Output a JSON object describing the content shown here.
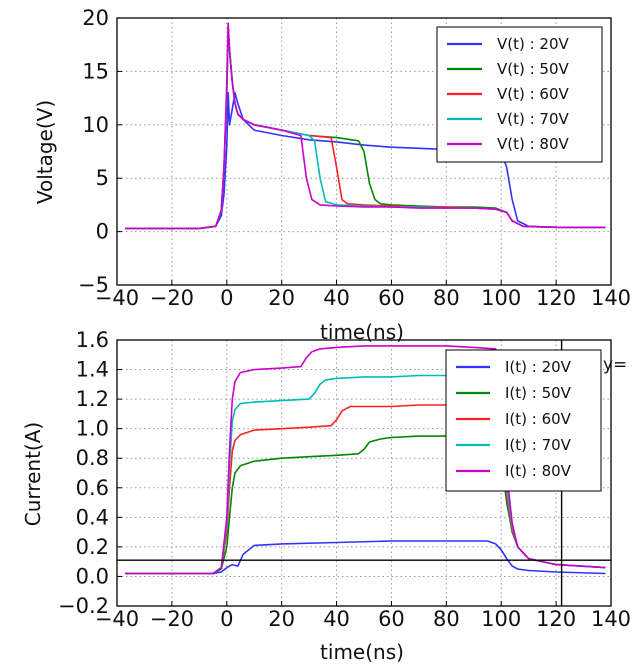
{
  "chart_data": [
    {
      "type": "line",
      "xlabel": "time(ns)",
      "ylabel": "Voltage(V)",
      "xlim": [
        -40,
        140
      ],
      "ylim": [
        -5,
        20
      ],
      "xticks": [
        -40,
        -20,
        0,
        20,
        40,
        60,
        80,
        100,
        120,
        140
      ],
      "yticks": [
        -5,
        0,
        5,
        10,
        15,
        20
      ],
      "grid": true,
      "legend_position": "top-right",
      "series": [
        {
          "name": "V(t) : 20V",
          "color": "#3333ff",
          "x": [
            -37,
            -10,
            -4,
            -2,
            -1,
            0,
            0.5,
            1,
            2,
            3,
            4,
            6,
            10,
            20,
            30,
            40,
            50,
            60,
            70,
            80,
            90,
            100,
            102,
            104,
            106,
            110,
            120,
            138
          ],
          "y": [
            0.3,
            0.3,
            0.5,
            1.5,
            3.5,
            8,
            13,
            10,
            11.5,
            13,
            12,
            10.5,
            9.5,
            9,
            8.6,
            8.4,
            8.1,
            7.9,
            7.8,
            7.7,
            7.6,
            7.5,
            6,
            3,
            1,
            0.5,
            0.4,
            0.4
          ]
        },
        {
          "name": "V(t) : 50V",
          "color": "#008800",
          "x": [
            -37,
            -10,
            -4,
            -2,
            -1,
            0,
            0.5,
            1,
            2,
            3,
            4,
            6,
            10,
            20,
            30,
            40,
            48,
            50,
            52,
            54,
            56,
            60,
            70,
            80,
            90,
            98,
            102,
            104,
            108,
            120,
            138
          ],
          "y": [
            0.3,
            0.3,
            0.5,
            2,
            6,
            13,
            19,
            17,
            14,
            12,
            11,
            10.5,
            10,
            9.5,
            9,
            8.8,
            8.5,
            7.5,
            4.5,
            3,
            2.6,
            2.5,
            2.4,
            2.3,
            2.3,
            2.2,
            1.8,
            1,
            0.5,
            0.4,
            0.4
          ]
        },
        {
          "name": "V(t) : 60V",
          "color": "#ff2222",
          "x": [
            -37,
            -10,
            -4,
            -2,
            -1,
            0,
            0.5,
            1,
            2,
            3,
            4,
            6,
            10,
            20,
            30,
            38,
            40,
            42,
            44,
            50,
            60,
            70,
            80,
            90,
            98,
            102,
            104,
            108,
            120,
            138
          ],
          "y": [
            0.3,
            0.3,
            0.5,
            2,
            6,
            13,
            19,
            17,
            14,
            12,
            11,
            10.5,
            10,
            9.5,
            9,
            8.8,
            6,
            3,
            2.6,
            2.5,
            2.4,
            2.3,
            2.3,
            2.2,
            2.1,
            1.8,
            1,
            0.5,
            0.4,
            0.4
          ]
        },
        {
          "name": "V(t) : 70V",
          "color": "#00bbbb",
          "x": [
            -37,
            -10,
            -4,
            -2,
            -1,
            0,
            0.5,
            1,
            2,
            3,
            4,
            6,
            10,
            20,
            30,
            32,
            34,
            36,
            40,
            50,
            60,
            70,
            80,
            90,
            98,
            102,
            104,
            108,
            120,
            138
          ],
          "y": [
            0.3,
            0.3,
            0.5,
            2,
            6,
            13,
            19,
            17,
            14,
            12,
            11,
            10.5,
            10,
            9.5,
            9,
            8.5,
            5,
            2.8,
            2.5,
            2.4,
            2.3,
            2.3,
            2.2,
            2.2,
            2.1,
            1.8,
            1,
            0.5,
            0.4,
            0.4
          ]
        },
        {
          "name": "V(t) : 80V",
          "color": "#cc00cc",
          "x": [
            -37,
            -10,
            -4,
            -2,
            -1,
            0,
            0.5,
            1,
            2,
            3,
            4,
            6,
            10,
            20,
            27,
            29,
            31,
            34,
            40,
            50,
            60,
            70,
            80,
            90,
            98,
            102,
            104,
            108,
            120,
            138
          ],
          "y": [
            0.3,
            0.3,
            0.5,
            2,
            6,
            14,
            19.5,
            17,
            14,
            12,
            11,
            10.5,
            10,
            9.5,
            9,
            5,
            3,
            2.5,
            2.4,
            2.3,
            2.3,
            2.2,
            2.2,
            2.2,
            2.1,
            1.8,
            1,
            0.5,
            0.4,
            0.4
          ]
        }
      ]
    },
    {
      "type": "line",
      "xlabel": "time(ns)",
      "ylabel": "Current(A)",
      "xlim": [
        -40,
        140
      ],
      "ylim": [
        -0.2,
        1.6
      ],
      "xticks": [
        -40,
        -20,
        0,
        20,
        40,
        60,
        80,
        100,
        120,
        140
      ],
      "yticks": [
        -0.2,
        0.0,
        0.2,
        0.4,
        0.6,
        0.8,
        1.0,
        1.2,
        1.4,
        1.6
      ],
      "grid": true,
      "legend_position": "top-right",
      "hline_y": 0.11,
      "vline_x": 122,
      "annotation": "y=",
      "series": [
        {
          "name": "I(t) : 20V",
          "color": "#3333ff",
          "x": [
            -37,
            -5,
            -2,
            0,
            2,
            4,
            6,
            10,
            20,
            40,
            60,
            80,
            90,
            95,
            98,
            100,
            102,
            104,
            106,
            110,
            120,
            138
          ],
          "y": [
            0.02,
            0.02,
            0.03,
            0.06,
            0.08,
            0.07,
            0.15,
            0.21,
            0.22,
            0.23,
            0.24,
            0.24,
            0.24,
            0.24,
            0.22,
            0.18,
            0.12,
            0.07,
            0.05,
            0.04,
            0.03,
            0.02
          ]
        },
        {
          "name": "I(t) : 50V",
          "color": "#008800",
          "x": [
            -37,
            -5,
            -2,
            0,
            1,
            2,
            3,
            5,
            10,
            20,
            30,
            40,
            48,
            50,
            52,
            56,
            60,
            70,
            80,
            90,
            98,
            100,
            102,
            104,
            106,
            110,
            120,
            138
          ],
          "y": [
            0.02,
            0.02,
            0.05,
            0.2,
            0.4,
            0.6,
            0.7,
            0.75,
            0.78,
            0.8,
            0.81,
            0.82,
            0.83,
            0.86,
            0.91,
            0.93,
            0.94,
            0.95,
            0.95,
            0.95,
            0.94,
            0.8,
            0.5,
            0.3,
            0.2,
            0.12,
            0.08,
            0.06
          ]
        },
        {
          "name": "I(t) : 60V",
          "color": "#ff2222",
          "x": [
            -37,
            -5,
            -2,
            0,
            1,
            2,
            3,
            5,
            10,
            20,
            30,
            38,
            40,
            42,
            45,
            50,
            60,
            70,
            80,
            90,
            98,
            100,
            102,
            104,
            106,
            110,
            120,
            138
          ],
          "y": [
            0.02,
            0.02,
            0.06,
            0.3,
            0.6,
            0.85,
            0.92,
            0.96,
            0.99,
            1.0,
            1.01,
            1.02,
            1.06,
            1.12,
            1.15,
            1.15,
            1.15,
            1.16,
            1.16,
            1.16,
            1.15,
            0.9,
            0.55,
            0.32,
            0.2,
            0.12,
            0.08,
            0.06
          ]
        },
        {
          "name": "I(t) : 70V",
          "color": "#00bbbb",
          "x": [
            -37,
            -5,
            -2,
            0,
            1,
            2,
            3,
            5,
            10,
            20,
            30,
            32,
            34,
            36,
            40,
            50,
            60,
            70,
            80,
            90,
            98,
            100,
            102,
            104,
            106,
            110,
            120,
            138
          ],
          "y": [
            0.02,
            0.02,
            0.06,
            0.35,
            0.75,
            1.05,
            1.13,
            1.17,
            1.18,
            1.19,
            1.2,
            1.24,
            1.3,
            1.33,
            1.34,
            1.35,
            1.35,
            1.36,
            1.36,
            1.36,
            1.35,
            1.05,
            0.6,
            0.34,
            0.2,
            0.12,
            0.08,
            0.06
          ]
        },
        {
          "name": "I(t) : 80V",
          "color": "#cc00cc",
          "x": [
            -37,
            -5,
            -2,
            0,
            1,
            2,
            3,
            5,
            10,
            20,
            27,
            29,
            31,
            34,
            40,
            50,
            60,
            70,
            80,
            90,
            98,
            100,
            102,
            104,
            106,
            110,
            120,
            138
          ],
          "y": [
            0.02,
            0.02,
            0.06,
            0.4,
            0.85,
            1.2,
            1.32,
            1.38,
            1.4,
            1.41,
            1.42,
            1.48,
            1.52,
            1.54,
            1.55,
            1.56,
            1.56,
            1.56,
            1.56,
            1.55,
            1.54,
            1.2,
            0.7,
            0.36,
            0.2,
            0.12,
            0.08,
            0.06
          ]
        }
      ]
    }
  ]
}
